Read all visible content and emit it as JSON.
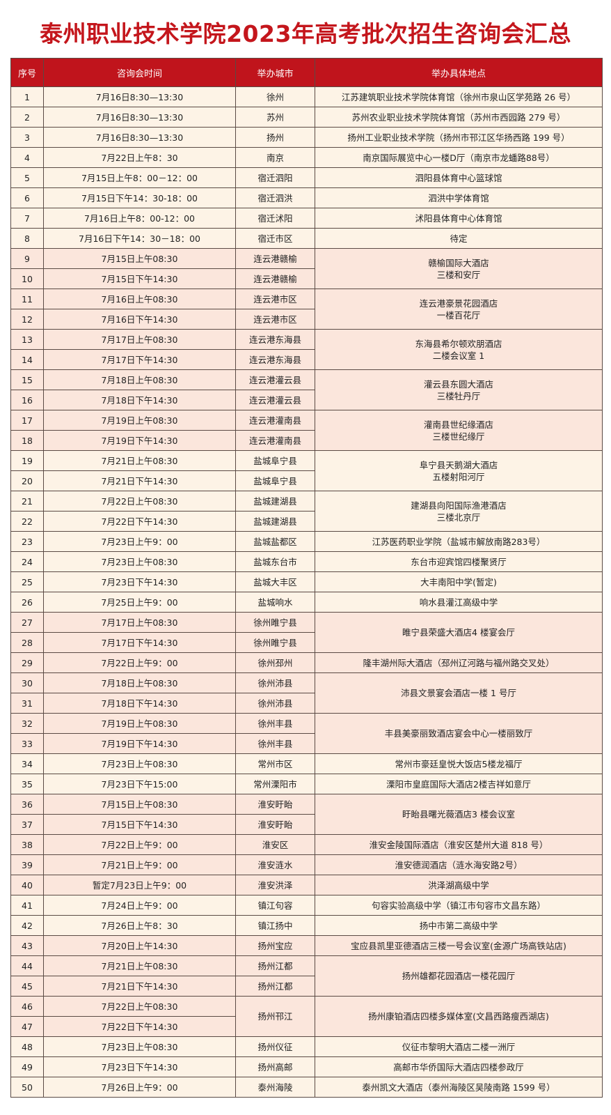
{
  "title": "泰州职业技术学院2023年高考批次招生咨询会汇总",
  "colors": {
    "title": "#c4161c",
    "header_bg": "#c0141c",
    "cream": "#fdf3e6",
    "pink": "#fbe6dc"
  },
  "headers": [
    "序号",
    "咨询会时间",
    "举办城市",
    "举办具体地点"
  ],
  "rows": [
    {
      "no": "1",
      "time": "7月16日8:30—13:30",
      "city": "徐州",
      "venue": "江苏建筑职业技术学院体育馆（徐州市泉山区学苑路 26 号）",
      "shade": "cream"
    },
    {
      "no": "2",
      "time": "7月16日8:30—13:30",
      "city": "苏州",
      "venue": "苏州农业职业技术学院体育馆（苏州市西园路 279 号）",
      "shade": "cream"
    },
    {
      "no": "3",
      "time": "7月16日8:30—13:30",
      "city": "扬州",
      "venue": "扬州工业职业技术学院（扬州市邗江区华扬西路 199 号）",
      "shade": "cream"
    },
    {
      "no": "4",
      "time": "7月22日上午8：30",
      "city": "南京",
      "venue": "南京国际展览中心一楼D厅（南京市龙蟠路88号）",
      "shade": "cream"
    },
    {
      "no": "5",
      "time": "7月15日上午8：00－12：00",
      "city": "宿迁泗阳",
      "venue": "泗阳县体育中心篮球馆",
      "shade": "cream"
    },
    {
      "no": "6",
      "time": "7月15日下午14：30-18：00",
      "city": "宿迁泗洪",
      "venue": "泗洪中学体育馆",
      "shade": "cream"
    },
    {
      "no": "7",
      "time": "7月16日上午8：00-12：00",
      "city": "宿迁沭阳",
      "venue": "沭阳县体育中心体育馆",
      "shade": "cream"
    },
    {
      "no": "8",
      "time": "7月16日下午14：30－18：00",
      "city": "宿迁市区",
      "venue": "待定",
      "shade": "cream"
    },
    {
      "no": "9",
      "time": "7月15日上午08:30",
      "city": "连云港赣榆",
      "venue": "赣榆国际大酒店\n三楼和安厅",
      "venue_span": 2,
      "shade": "pink"
    },
    {
      "no": "10",
      "time": "7月15日下午14:30",
      "city": "连云港赣榆",
      "shade": "pink"
    },
    {
      "no": "11",
      "time": "7月16日上午08:30",
      "city": "连云港市区",
      "venue": "连云港豪景花园酒店\n一楼百花厅",
      "venue_span": 2,
      "shade": "pink"
    },
    {
      "no": "12",
      "time": "7月16日下午14:30",
      "city": "连云港市区",
      "shade": "pink"
    },
    {
      "no": "13",
      "time": "7月17日上午08:30",
      "city": "连云港东海县",
      "venue": "东海县希尔顿欢朋酒店\n二楼会议室 1",
      "venue_span": 2,
      "shade": "pink"
    },
    {
      "no": "14",
      "time": "7月17日下午14:30",
      "city": "连云港东海县",
      "shade": "pink"
    },
    {
      "no": "15",
      "time": "7月18日上午08:30",
      "city": "连云港灌云县",
      "venue": "灌云县东圆大酒店\n三楼牡丹厅",
      "venue_span": 2,
      "shade": "pink"
    },
    {
      "no": "16",
      "time": "7月18日下午14:30",
      "city": "连云港灌云县",
      "shade": "pink"
    },
    {
      "no": "17",
      "time": "7月19日上午08:30",
      "city": "连云港灌南县",
      "venue": "灌南县世纪缘酒店\n三楼世纪缘厅",
      "venue_span": 2,
      "shade": "pink"
    },
    {
      "no": "18",
      "time": "7月19日下午14:30",
      "city": "连云港灌南县",
      "shade": "pink"
    },
    {
      "no": "19",
      "time": "7月21日上午08:30",
      "city": "盐城阜宁县",
      "venue": "阜宁县天鹅湖大酒店\n五楼射阳河厅",
      "venue_span": 2,
      "shade": "cream"
    },
    {
      "no": "20",
      "time": "7月21日下午14:30",
      "city": "盐城阜宁县",
      "shade": "cream"
    },
    {
      "no": "21",
      "time": "7月22日上午08:30",
      "city": "盐城建湖县",
      "venue": "建湖县向阳国际渔港酒店\n三楼北京厅",
      "venue_span": 2,
      "shade": "cream"
    },
    {
      "no": "22",
      "time": "7月22日下午14:30",
      "city": "盐城建湖县",
      "shade": "cream"
    },
    {
      "no": "23",
      "time": "7月23日上午9：00",
      "city": "盐城盐都区",
      "venue": "江苏医药职业学院（盐城市解放南路283号）",
      "shade": "cream"
    },
    {
      "no": "24",
      "time": "7月23日上午08:30",
      "city": "盐城东台市",
      "venue": "东台市迎宾馆四楼聚贤厅",
      "shade": "cream"
    },
    {
      "no": "25",
      "time": "7月23日下午14:30",
      "city": "盐城大丰区",
      "venue": "大丰南阳中学(暂定)",
      "shade": "cream"
    },
    {
      "no": "26",
      "time": "7月25日上午9：00",
      "city": "盐城响水",
      "venue": "响水县灌江高级中学",
      "shade": "cream"
    },
    {
      "no": "27",
      "time": "7月17日上午08:30",
      "city": "徐州睢宁县",
      "venue": "睢宁县荣盛大酒店4 楼宴会厅",
      "venue_span": 2,
      "shade": "pink"
    },
    {
      "no": "28",
      "time": "7月17日下午14:30",
      "city": "徐州睢宁县",
      "shade": "pink"
    },
    {
      "no": "29",
      "time": "7月22日上午9：00",
      "city": "徐州邳州",
      "venue": "隆丰湖州际大酒店（邳州辽河路与福州路交叉处）",
      "shade": "pink"
    },
    {
      "no": "30",
      "time": "7月18日上午08:30",
      "city": "徐州沛县",
      "venue": "沛县文景宴会酒店一楼 1 号厅",
      "venue_span": 2,
      "shade": "pink"
    },
    {
      "no": "31",
      "time": "7月18日下午14:30",
      "city": "徐州沛县",
      "shade": "pink"
    },
    {
      "no": "32",
      "time": "7月19日上午08:30",
      "city": "徐州丰县",
      "venue": "丰县美豪丽致酒店宴会中心一楼丽致厅",
      "venue_span": 2,
      "shade": "pink"
    },
    {
      "no": "33",
      "time": "7月19日下午14:30",
      "city": "徐州丰县",
      "shade": "pink"
    },
    {
      "no": "34",
      "time": "7月23日上午08:30",
      "city": "常州市区",
      "venue": "常州市豪廷皇悦大饭店5楼龙福厅",
      "shade": "cream"
    },
    {
      "no": "35",
      "time": "7月23日下午15:00",
      "city": "常州溧阳市",
      "venue": "溧阳市皇庭国际大酒店2楼吉祥如意厅",
      "shade": "cream"
    },
    {
      "no": "36",
      "time": "7月15日上午08:30",
      "city": "淮安盱眙",
      "venue": "盱眙县曙光薇酒店3 楼会议室",
      "venue_span": 2,
      "shade": "pink"
    },
    {
      "no": "37",
      "time": "7月15日下午14:30",
      "city": "淮安盱眙",
      "shade": "pink"
    },
    {
      "no": "38",
      "time": "7月22日上午9：00",
      "city": "淮安区",
      "venue": "淮安金陵国际酒店（淮安区楚州大道 818 号）",
      "shade": "pink"
    },
    {
      "no": "39",
      "time": "7月21日上午9：00",
      "city": "淮安涟水",
      "venue": "淮安德润酒店（涟水海安路2号）",
      "shade": "pink"
    },
    {
      "no": "40",
      "time": "暂定7月23日上午9：00",
      "city": "淮安洪泽",
      "venue": "洪泽湖高级中学",
      "shade": "pink"
    },
    {
      "no": "41",
      "time": "7月24日上午9：00",
      "city": "镇江句容",
      "venue": "句容实验高级中学（镇江市句容市文昌东路）",
      "shade": "cream"
    },
    {
      "no": "42",
      "time": "7月26日上午8：30",
      "city": "镇江扬中",
      "venue": "扬中市第二高级中学",
      "shade": "cream"
    },
    {
      "no": "43",
      "time": "7月20日上午14:30",
      "city": "扬州宝应",
      "venue": "宝应县凯里亚德酒店三楼一号会议室(金源广场高铁站店)",
      "shade": "pink"
    },
    {
      "no": "44",
      "time": "7月21日上午08:30",
      "city": "扬州江都",
      "venue": "扬州雄都花园酒店一楼花园厅",
      "venue_span": 2,
      "shade": "pink"
    },
    {
      "no": "45",
      "time": "7月21日下午14:30",
      "city": "扬州江都",
      "shade": "pink"
    },
    {
      "no": "46",
      "time": "7月22日上午08:30",
      "city": "扬州邗江",
      "city_span": 2,
      "venue": "扬州康铂酒店四楼多媒体室(文昌西路瘦西湖店)",
      "venue_span": 2,
      "shade": "pink"
    },
    {
      "no": "47",
      "time": "7月22日下午14:30",
      "shade": "pink"
    },
    {
      "no": "48",
      "time": "7月23日上午08:30",
      "city": "扬州仪征",
      "venue": "仪征市黎明大酒店二楼一洲厅",
      "shade": "cream"
    },
    {
      "no": "49",
      "time": "7月23日下午14:30",
      "city": "扬州高邮",
      "venue": "高邮市华侨国际大酒店四楼参政厅",
      "shade": "cream"
    },
    {
      "no": "50",
      "time": "7月26日上午9：00",
      "city": "泰州海陵",
      "venue": "泰州凯文大酒店（泰州海陵区吴陵南路 1599 号）",
      "shade": "cream"
    }
  ]
}
